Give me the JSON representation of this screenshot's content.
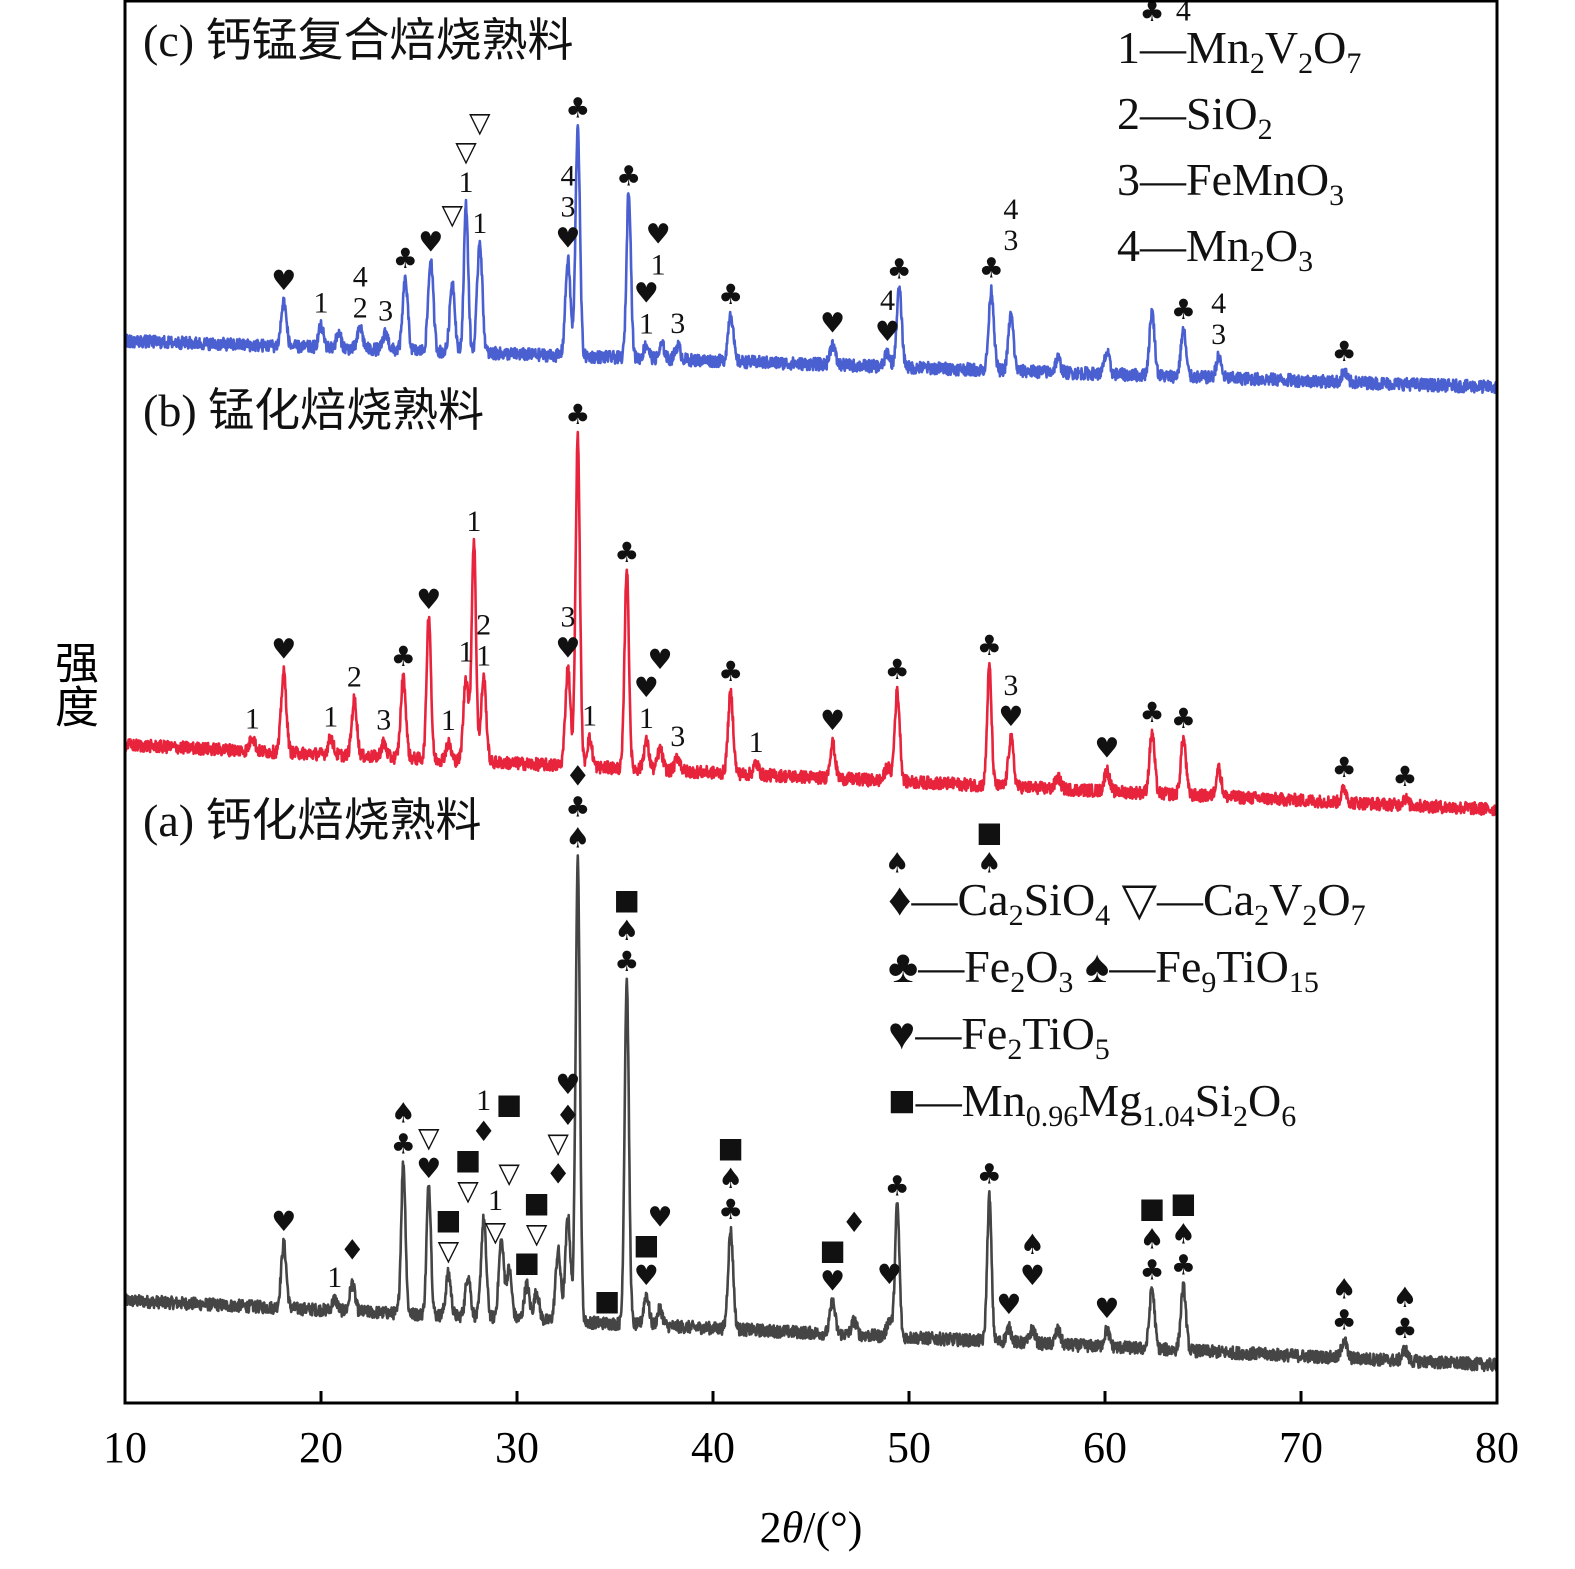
{
  "chart_data": {
    "type": "line",
    "title": "",
    "xlabel": "2θ/(°)",
    "xlabel_parts": {
      "prefix": "2",
      "theta": "θ",
      "suffix": "/(°)"
    },
    "ylabel": "强度",
    "xlim": [
      10,
      80
    ],
    "ylim": [
      0,
      100
    ],
    "xticks": [
      10,
      20,
      30,
      40,
      50,
      60,
      70,
      80
    ],
    "grid": false,
    "series": [
      {
        "name": "(a) 钙化焙烧熟料",
        "color": "#454545",
        "baseline": [
          7.3,
          2.7
        ],
        "peaks": [
          [
            18.1,
            4.6
          ],
          [
            20.7,
            0.8
          ],
          [
            21.6,
            2.0
          ],
          [
            24.2,
            10.7
          ],
          [
            25.5,
            9.3
          ],
          [
            26.5,
            3.0
          ],
          [
            27.5,
            3.0
          ],
          [
            28.3,
            7.0
          ],
          [
            29.2,
            5.5
          ],
          [
            29.6,
            3.5
          ],
          [
            30.5,
            2.5
          ],
          [
            31.0,
            2.0
          ],
          [
            32.1,
            5.0
          ],
          [
            32.6,
            7.5
          ],
          [
            33.1,
            33.0
          ],
          [
            35.6,
            24.5
          ],
          [
            36.6,
            2.2
          ],
          [
            37.3,
            1.2
          ],
          [
            40.9,
            7.0
          ],
          [
            46.1,
            2.3
          ],
          [
            47.2,
            1.0
          ],
          [
            49.0,
            1.2
          ],
          [
            49.4,
            9.5
          ],
          [
            54.1,
            10.3
          ],
          [
            55.1,
            1.0
          ],
          [
            56.3,
            1.0
          ],
          [
            57.6,
            1.0
          ],
          [
            60.1,
            1.2
          ],
          [
            62.4,
            4.3
          ],
          [
            64.0,
            4.5
          ],
          [
            72.2,
            1.3
          ],
          [
            75.3,
            0.8
          ]
        ],
        "annotations": [
          [
            18.1,
            [
              "♥"
            ]
          ],
          [
            20.7,
            [
              "1"
            ]
          ],
          [
            21.6,
            [
              "♦"
            ]
          ],
          [
            24.2,
            [
              "♣",
              "♠"
            ]
          ],
          [
            25.5,
            [
              "♥",
              "▽"
            ]
          ],
          [
            26.5,
            [
              "▽",
              "■"
            ]
          ],
          [
            27.5,
            [
              "▽",
              "■"
            ]
          ],
          [
            28.3,
            [
              "♦",
              "1"
            ]
          ],
          [
            28.9,
            [
              "▽",
              "1"
            ]
          ],
          [
            29.6,
            [
              "▽",
              "■"
            ]
          ],
          [
            30.5,
            [
              "■"
            ]
          ],
          [
            31.0,
            [
              "▽",
              "■"
            ]
          ],
          [
            32.1,
            [
              "♦",
              "▽"
            ]
          ],
          [
            32.6,
            [
              "♦",
              "♥"
            ]
          ],
          [
            33.1,
            [
              "♠",
              "♣",
              "♦"
            ]
          ],
          [
            34.6,
            [
              "■"
            ]
          ],
          [
            35.6,
            [
              "♣",
              "♠",
              "■"
            ]
          ],
          [
            36.6,
            [
              "♥",
              "■"
            ]
          ],
          [
            37.3,
            [
              "♥"
            ]
          ],
          [
            40.9,
            [
              "♣",
              "♠",
              "■"
            ]
          ],
          [
            46.1,
            [
              "♥",
              "■"
            ]
          ],
          [
            47.2,
            [
              "♦"
            ]
          ],
          [
            49.0,
            [
              "♥"
            ]
          ],
          [
            49.4,
            [
              "♣",
              "♠"
            ]
          ],
          [
            54.1,
            [
              "♣",
              "♠",
              "■"
            ]
          ],
          [
            55.1,
            [
              "♥"
            ]
          ],
          [
            56.3,
            [
              "♥",
              "♠"
            ]
          ],
          [
            60.1,
            [
              "♥"
            ]
          ],
          [
            62.4,
            [
              "♣",
              "♠",
              "■"
            ]
          ],
          [
            64.0,
            [
              "♣",
              "♠",
              "■"
            ]
          ],
          [
            72.2,
            [
              "♣",
              "♠"
            ]
          ],
          [
            75.3,
            [
              "♣",
              "♠"
            ]
          ]
        ]
      },
      {
        "name": "(b) 锰化焙烧熟料",
        "color": "#e8243c",
        "baseline": [
          46.9,
          42.3
        ],
        "peaks": [
          [
            16.5,
            1.0
          ],
          [
            18.1,
            5.7
          ],
          [
            20.5,
            1.2
          ],
          [
            21.7,
            4.0
          ],
          [
            23.2,
            1.0
          ],
          [
            24.2,
            5.7
          ],
          [
            25.5,
            10.3
          ],
          [
            26.5,
            1.2
          ],
          [
            27.4,
            6.0
          ],
          [
            27.8,
            15.7
          ],
          [
            28.3,
            6.0
          ],
          [
            32.6,
            7.0
          ],
          [
            33.1,
            23.5
          ],
          [
            33.7,
            2.0
          ],
          [
            35.6,
            14.3
          ],
          [
            36.6,
            2.0
          ],
          [
            37.3,
            1.5
          ],
          [
            38.2,
            1.0
          ],
          [
            40.9,
            5.7
          ],
          [
            42.2,
            0.8
          ],
          [
            46.1,
            2.5
          ],
          [
            48.9,
            1.0
          ],
          [
            49.4,
            6.4
          ],
          [
            54.1,
            8.5
          ],
          [
            55.2,
            3.5
          ],
          [
            57.6,
            0.8
          ],
          [
            60.1,
            1.5
          ],
          [
            62.4,
            4.3
          ],
          [
            64.0,
            4.0
          ],
          [
            65.8,
            2.0
          ],
          [
            72.2,
            1.0
          ],
          [
            75.3,
            0.5
          ]
        ],
        "annotations": [
          [
            16.5,
            [
              "1"
            ]
          ],
          [
            18.1,
            [
              "♥"
            ]
          ],
          [
            20.5,
            [
              "1"
            ]
          ],
          [
            21.7,
            [
              "2"
            ]
          ],
          [
            23.2,
            [
              "3"
            ]
          ],
          [
            24.2,
            [
              "♣"
            ]
          ],
          [
            25.5,
            [
              "♥"
            ]
          ],
          [
            26.5,
            [
              "1"
            ]
          ],
          [
            27.4,
            [
              "1"
            ]
          ],
          [
            27.8,
            [
              "1"
            ]
          ],
          [
            28.3,
            [
              "1",
              "2"
            ]
          ],
          [
            32.6,
            [
              "♥",
              "3"
            ]
          ],
          [
            33.1,
            [
              "♣"
            ]
          ],
          [
            33.7,
            [
              "1"
            ]
          ],
          [
            35.6,
            [
              "♣"
            ]
          ],
          [
            36.6,
            [
              "1",
              "♥"
            ]
          ],
          [
            37.3,
            [
              "♥"
            ]
          ],
          [
            38.2,
            [
              "3"
            ]
          ],
          [
            40.9,
            [
              "♣"
            ]
          ],
          [
            42.2,
            [
              "1"
            ]
          ],
          [
            46.1,
            [
              "♥"
            ]
          ],
          [
            49.4,
            [
              "♣"
            ]
          ],
          [
            54.1,
            [
              "♣"
            ]
          ],
          [
            55.2,
            [
              "♥",
              "3"
            ]
          ],
          [
            60.1,
            [
              "♥"
            ]
          ],
          [
            62.4,
            [
              "♣"
            ]
          ],
          [
            64.0,
            [
              "♣"
            ]
          ],
          [
            72.2,
            [
              "♣"
            ]
          ],
          [
            75.3,
            [
              "♣"
            ]
          ]
        ]
      },
      {
        "name": "(c) 钙锰复合焙烧熟料",
        "color": "#4a5fd0",
        "baseline": [
          75.7,
          72.4
        ],
        "peaks": [
          [
            18.1,
            3.2
          ],
          [
            20.0,
            1.5
          ],
          [
            20.9,
            1.0
          ],
          [
            22.0,
            1.5
          ],
          [
            23.3,
            1.2
          ],
          [
            24.3,
            5.0
          ],
          [
            25.6,
            6.5
          ],
          [
            26.7,
            5.0
          ],
          [
            27.4,
            10.5
          ],
          [
            28.1,
            8.0
          ],
          [
            32.6,
            6.8
          ],
          [
            33.1,
            16.5
          ],
          [
            35.7,
            12.0
          ],
          [
            36.6,
            1.0
          ],
          [
            37.4,
            1.0
          ],
          [
            38.2,
            1.0
          ],
          [
            40.9,
            3.5
          ],
          [
            46.1,
            1.5
          ],
          [
            48.9,
            1.0
          ],
          [
            49.5,
            5.5
          ],
          [
            54.2,
            5.7
          ],
          [
            55.2,
            4.0
          ],
          [
            57.6,
            1.0
          ],
          [
            60.1,
            1.5
          ],
          [
            62.4,
            4.5
          ],
          [
            64.0,
            3.3
          ],
          [
            65.8,
            1.5
          ],
          [
            72.2,
            0.7
          ]
        ],
        "annotations": [
          [
            18.1,
            [
              "♥"
            ]
          ],
          [
            20.0,
            [
              "1"
            ]
          ],
          [
            22.0,
            [
              "2",
              "4"
            ]
          ],
          [
            23.3,
            [
              "3"
            ]
          ],
          [
            24.3,
            [
              "♣"
            ]
          ],
          [
            25.6,
            [
              "♥"
            ]
          ],
          [
            26.7,
            [
              "▽"
            ]
          ],
          [
            27.4,
            [
              "1",
              "▽"
            ]
          ],
          [
            28.1,
            [
              "1",
              "▽"
            ]
          ],
          [
            32.6,
            [
              "♥",
              "3",
              "4"
            ]
          ],
          [
            33.1,
            [
              "♣"
            ]
          ],
          [
            35.7,
            [
              "♣"
            ]
          ],
          [
            36.6,
            [
              "1",
              "♥"
            ]
          ],
          [
            37.2,
            [
              "1",
              "♥"
            ]
          ],
          [
            38.2,
            [
              "3"
            ]
          ],
          [
            40.9,
            [
              "♣"
            ]
          ],
          [
            46.1,
            [
              "♥"
            ]
          ],
          [
            48.9,
            [
              "♥",
              "4"
            ]
          ],
          [
            49.5,
            [
              "♣"
            ]
          ],
          [
            54.2,
            [
              "♣"
            ]
          ],
          [
            55.2,
            [
              "3",
              "4"
            ]
          ],
          [
            62.4,
            [
              "♣"
            ]
          ],
          [
            64.0,
            [
              "♣",
              "4"
            ]
          ],
          [
            65.8,
            [
              "3",
              "4"
            ]
          ],
          [
            72.2,
            [
              "♣"
            ]
          ]
        ]
      }
    ],
    "legend_top": [
      "1—Mn2V2O7",
      "2—SiO2",
      "3—FeMnO3",
      "4—Mn2O3"
    ],
    "legend_bottom": [
      "♦—Ca2SiO4 ▽—Ca2V2O7",
      "♣—Fe2O3 ♠—Fe9TiO15",
      "♥—Fe2TiO5",
      "■—Mn0.96Mg1.04Si2O6"
    ]
  }
}
